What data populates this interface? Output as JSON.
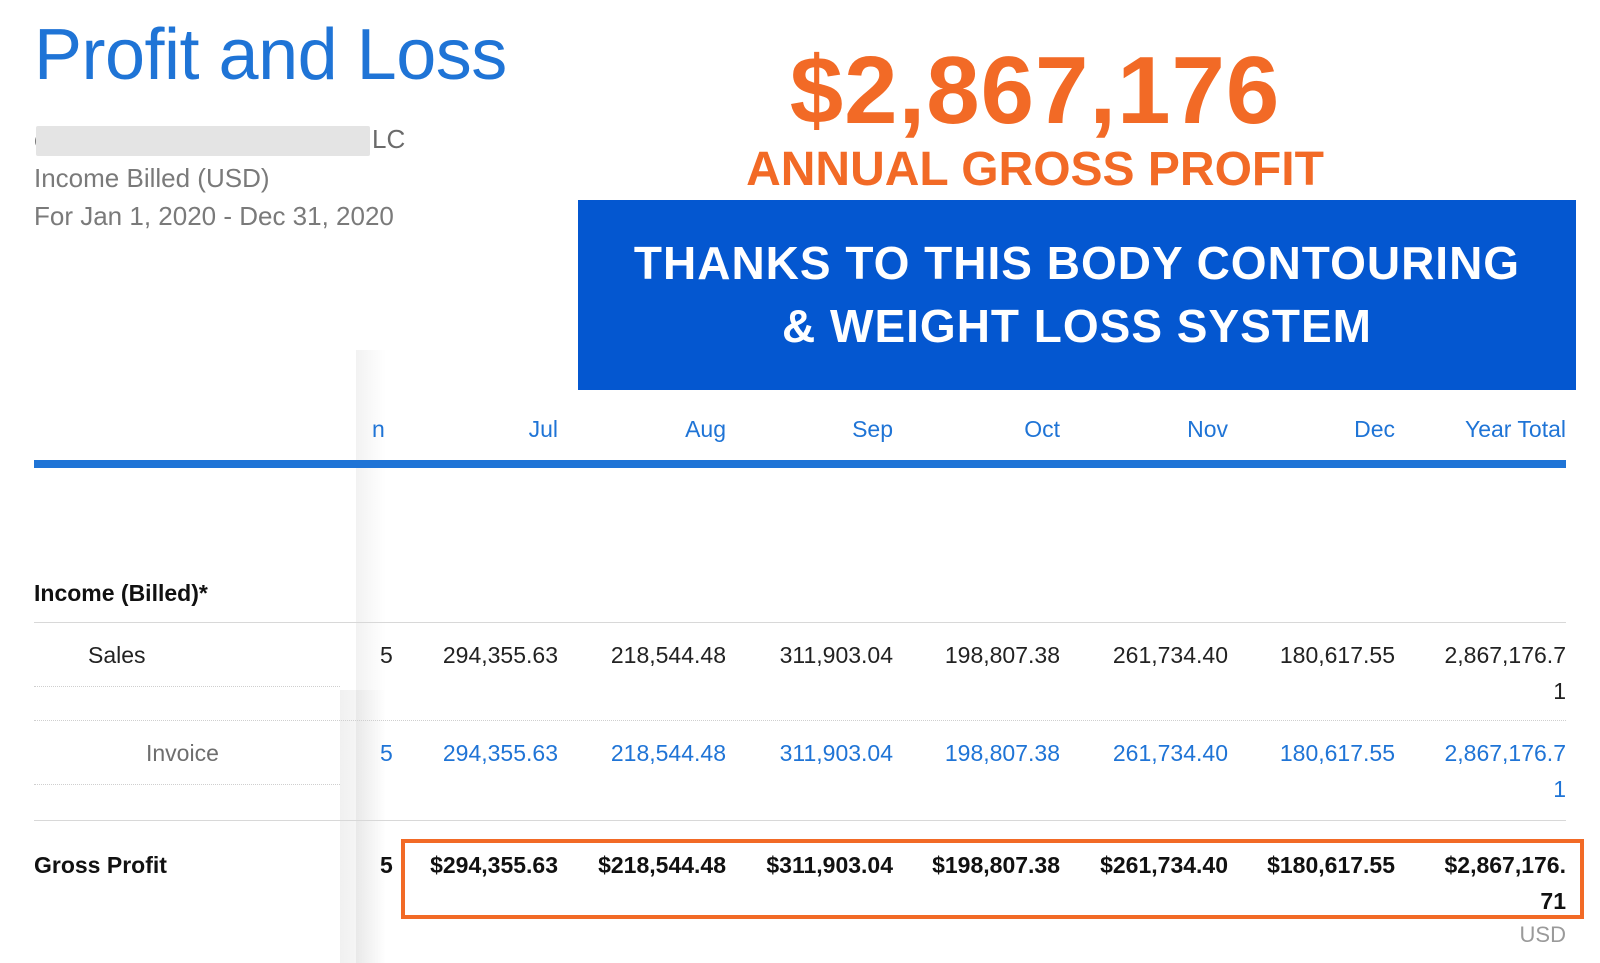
{
  "report": {
    "title": "Profit and Loss",
    "company_initial": "e",
    "company_suffix": "LC",
    "subtitle": "Income Billed (USD)",
    "period": "For Jan 1, 2020 - Dec 31, 2020"
  },
  "overlay": {
    "amount": "$2,867,176",
    "caption": "ANNUAL GROSS PROFIT",
    "banner_line1": "THANKS TO THIS BODY CONTOURING",
    "banner_line2": "& WEIGHT LOSS SYSTEM",
    "accent_color": "#f26a26",
    "banner_color": "#0457d0"
  },
  "table": {
    "partial_header_fragment": "n",
    "columns": [
      "Jul",
      "Aug",
      "Sep",
      "Oct",
      "Nov",
      "Dec",
      "Year Total"
    ],
    "section_label": "Income (Billed)*",
    "rows": {
      "sales": {
        "label": "Sales",
        "fragment": "5",
        "values": [
          "294,355.63",
          "218,544.48",
          "311,903.04",
          "198,807.38",
          "261,734.40",
          "180,617.55"
        ],
        "total_line1": "2,867,176.7",
        "total_line2": "1"
      },
      "invoice": {
        "label": "Invoice",
        "fragment": "5",
        "values": [
          "294,355.63",
          "218,544.48",
          "311,903.04",
          "198,807.38",
          "261,734.40",
          "180,617.55"
        ],
        "total_line1": "2,867,176.7",
        "total_line2": "1"
      },
      "gross_profit": {
        "label": "Gross Profit",
        "fragment": "5",
        "values": [
          "$294,355.63",
          "$218,544.48",
          "$311,903.04",
          "$198,807.38",
          "$261,734.40",
          "$180,617.55"
        ],
        "total_line1": "$2,867,176.",
        "total_line2": "71"
      }
    },
    "currency": "USD",
    "link_color": "#1f74d6"
  }
}
